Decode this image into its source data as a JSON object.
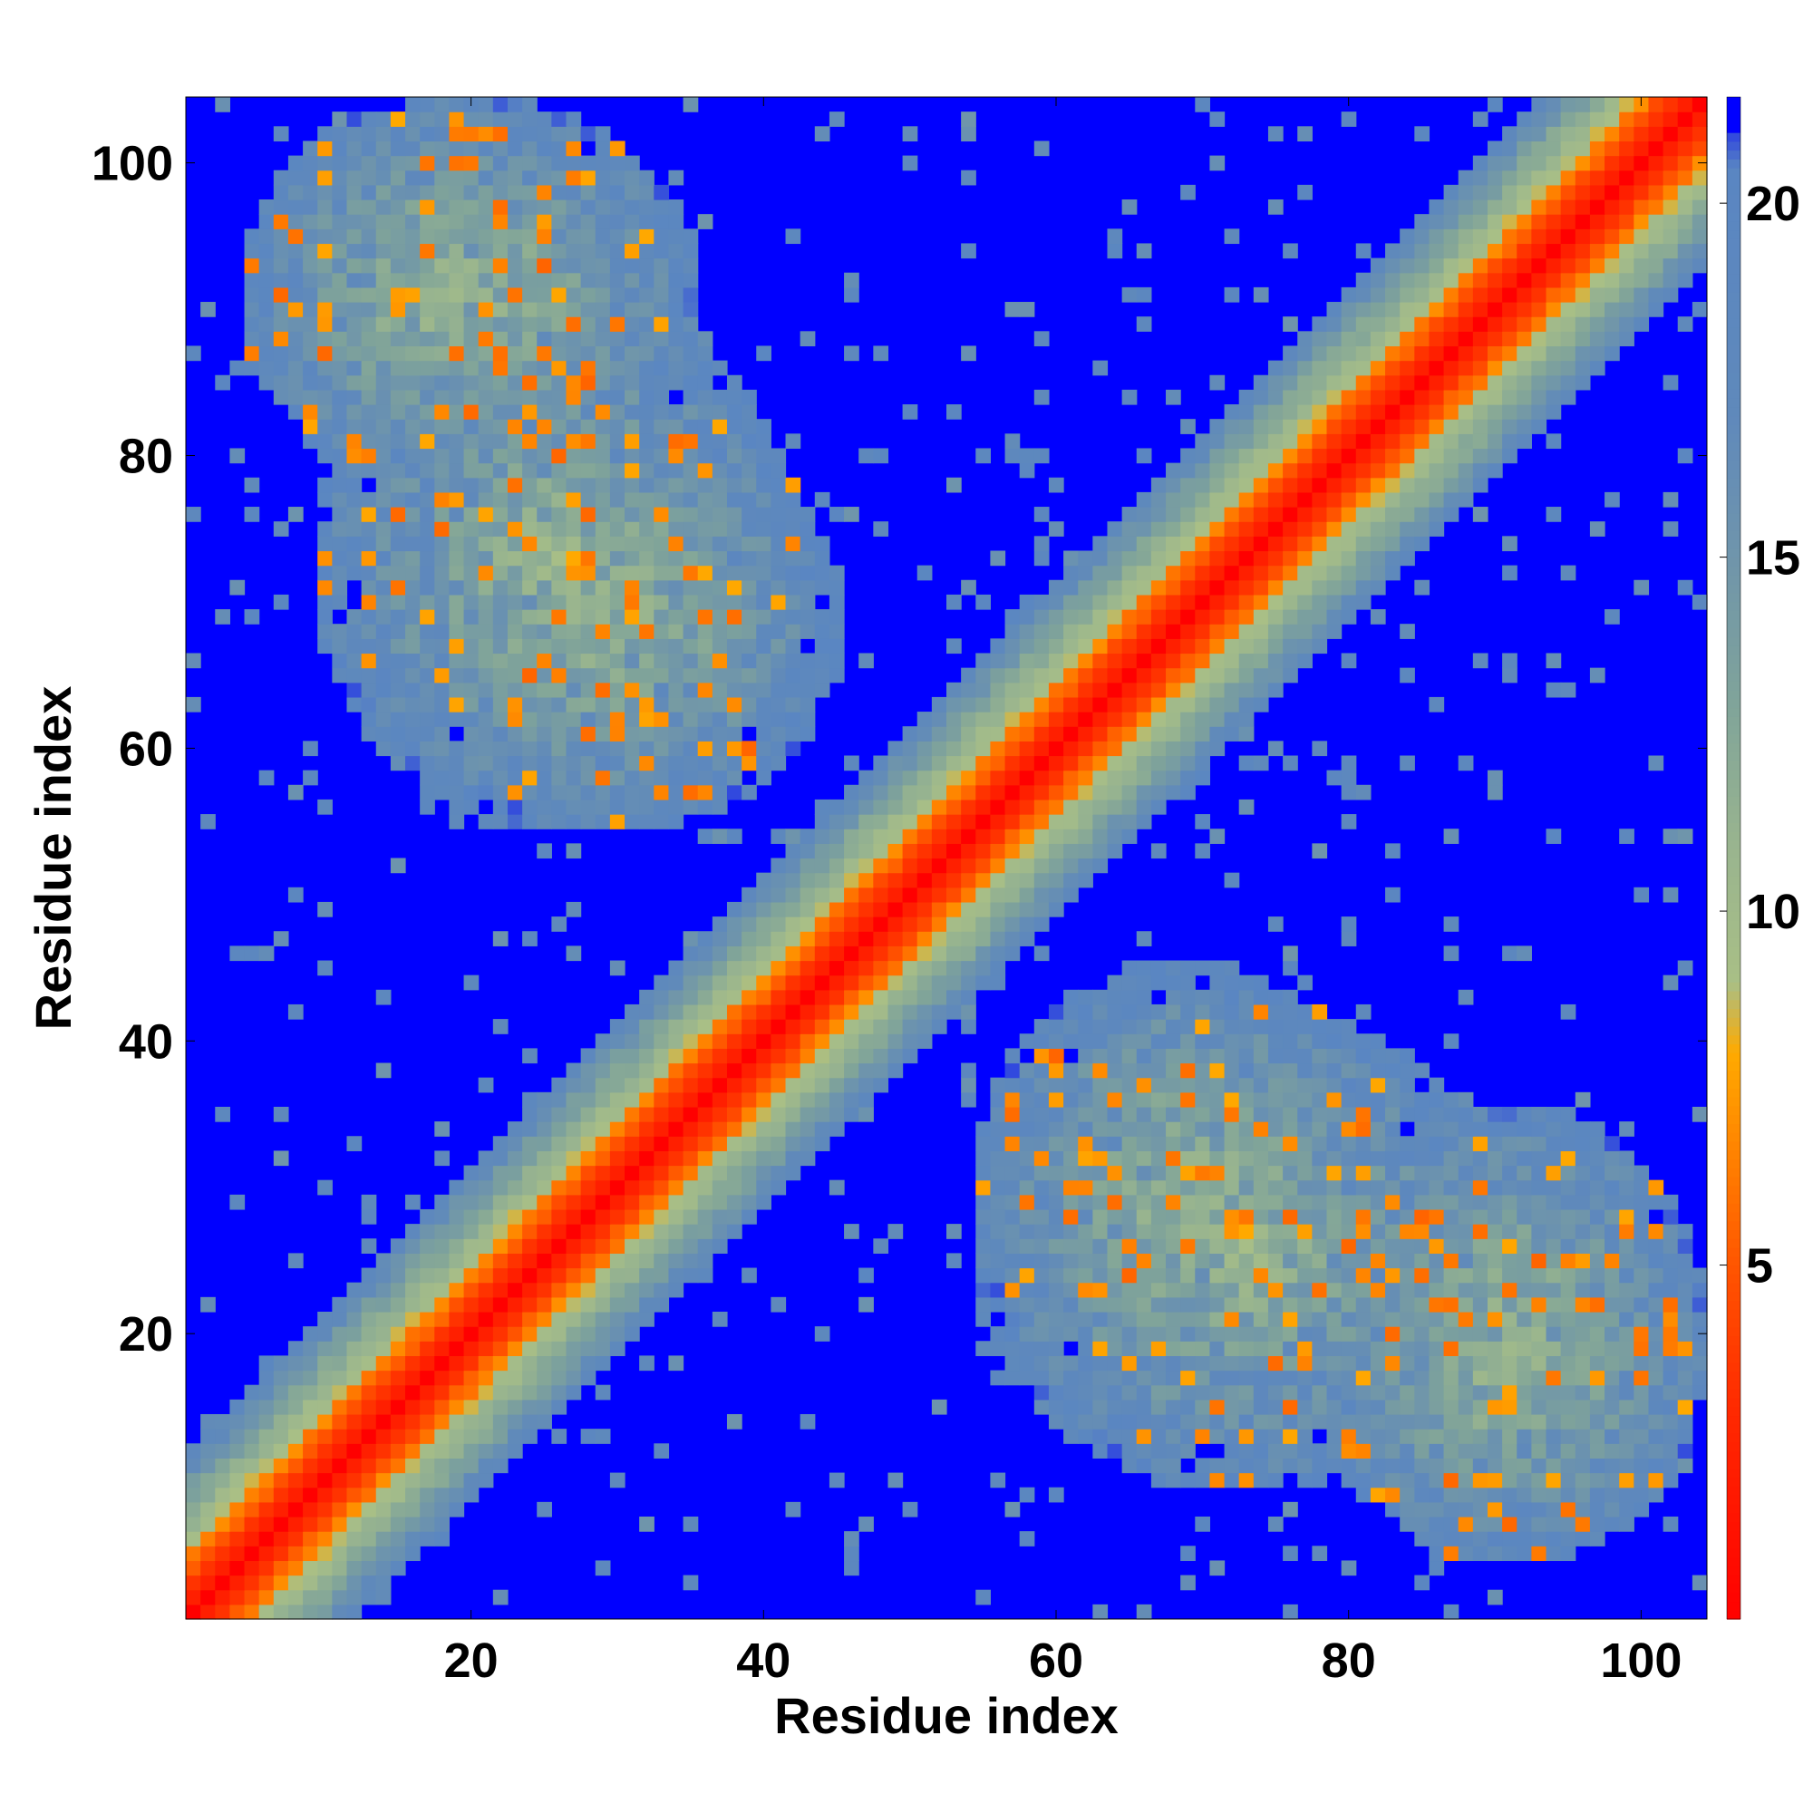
{
  "chart_data": {
    "type": "heatmap",
    "title": "",
    "xlabel": "Residue index",
    "ylabel": "Residue index",
    "n_residues": 104,
    "xlim": [
      0.5,
      104.5
    ],
    "ylim": [
      0.5,
      104.5
    ],
    "x_ticks": [
      20,
      40,
      60,
      80,
      100
    ],
    "y_ticks": [
      20,
      40,
      60,
      80,
      100
    ],
    "colorbar": {
      "ticks": [
        5,
        10,
        15,
        20
      ],
      "range": [
        0,
        21.5
      ],
      "stops": [
        {
          "value": 0,
          "color": "#ff0000"
        },
        {
          "value": 3,
          "color": "#ff2a00"
        },
        {
          "value": 5,
          "color": "#ff5500"
        },
        {
          "value": 6.5,
          "color": "#ff8000"
        },
        {
          "value": 8,
          "color": "#ffaa00"
        },
        {
          "value": 9,
          "color": "#a9bf86"
        },
        {
          "value": 11,
          "color": "#98b48f"
        },
        {
          "value": 13,
          "color": "#7fa39a"
        },
        {
          "value": 15,
          "color": "#6f95ab"
        },
        {
          "value": 17,
          "color": "#5f89bb"
        },
        {
          "value": 20.5,
          "color": "#5a86c2"
        },
        {
          "value": 21.5,
          "color": "#0000ff"
        }
      ],
      "cutoff_color": "#0000ff"
    },
    "description_values": {
      "diagonal_distance": 0,
      "off_diagonal_cutoff": 21,
      "contact_clusters": [
        {
          "x_range": [
            5,
            30
          ],
          "y_range": [
            78,
            104
          ]
        },
        {
          "x_range": [
            15,
            45
          ],
          "y_range": [
            55,
            82
          ]
        },
        {
          "x_range": [
            55,
            90
          ],
          "y_range": [
            10,
            42
          ]
        },
        {
          "x_range": [
            78,
            104
          ],
          "y_range": [
            5,
            35
          ]
        }
      ]
    }
  }
}
